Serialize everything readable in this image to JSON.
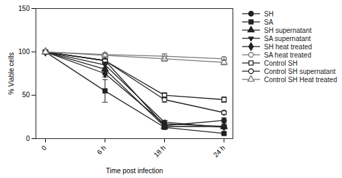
{
  "chart_data": {
    "type": "line",
    "x_label": "Time post infection",
    "y_label": "% Viable cells",
    "categories": [
      "0",
      "6 h",
      "18 h",
      "24 h"
    ],
    "ylim": [
      0,
      150
    ],
    "yticks": [
      0,
      50,
      100,
      150
    ],
    "grid": false,
    "legend": "right",
    "series": [
      {
        "name": "SH",
        "color": "#222222",
        "marker": "circle",
        "values": [
          100,
          90,
          15,
          21
        ],
        "errors": [
          0,
          2,
          2,
          3
        ]
      },
      {
        "name": "SA",
        "color": "#222222",
        "marker": "square",
        "values": [
          100,
          55,
          13,
          6
        ],
        "errors": [
          0,
          13,
          2,
          1
        ]
      },
      {
        "name": "SH supernatant",
        "color": "#222222",
        "marker": "triangle",
        "values": [
          100,
          80,
          14,
          14
        ],
        "errors": [
          0,
          6,
          2,
          2
        ]
      },
      {
        "name": "SA supernatant",
        "color": "#222222",
        "marker": "triangle-down",
        "values": [
          100,
          85,
          19,
          13
        ],
        "errors": [
          0,
          3,
          2,
          2
        ]
      },
      {
        "name": "SH heat treated",
        "color": "#222222",
        "marker": "diamond",
        "values": [
          100,
          75,
          17,
          14
        ],
        "errors": [
          0,
          4,
          2,
          2
        ]
      },
      {
        "name": "SA heat treated",
        "color": "#777777",
        "marker": "circle-open",
        "values": [
          100,
          97,
          95,
          92
        ],
        "errors": [
          0,
          2,
          3,
          2
        ]
      },
      {
        "name": "Control SH",
        "color": "#222222",
        "marker": "square-open",
        "values": [
          100,
          90,
          50,
          45
        ],
        "errors": [
          0,
          2,
          3,
          3
        ]
      },
      {
        "name": "Control SH supernatant",
        "color": "#222222",
        "marker": "circle-open",
        "values": [
          100,
          90,
          45,
          30
        ],
        "errors": [
          0,
          2,
          3,
          2
        ]
      },
      {
        "name": "Control SH Heat treated",
        "color": "#777777",
        "marker": "triangle-open",
        "values": [
          100,
          96,
          92,
          88
        ],
        "errors": [
          0,
          2,
          3,
          3
        ]
      }
    ]
  }
}
